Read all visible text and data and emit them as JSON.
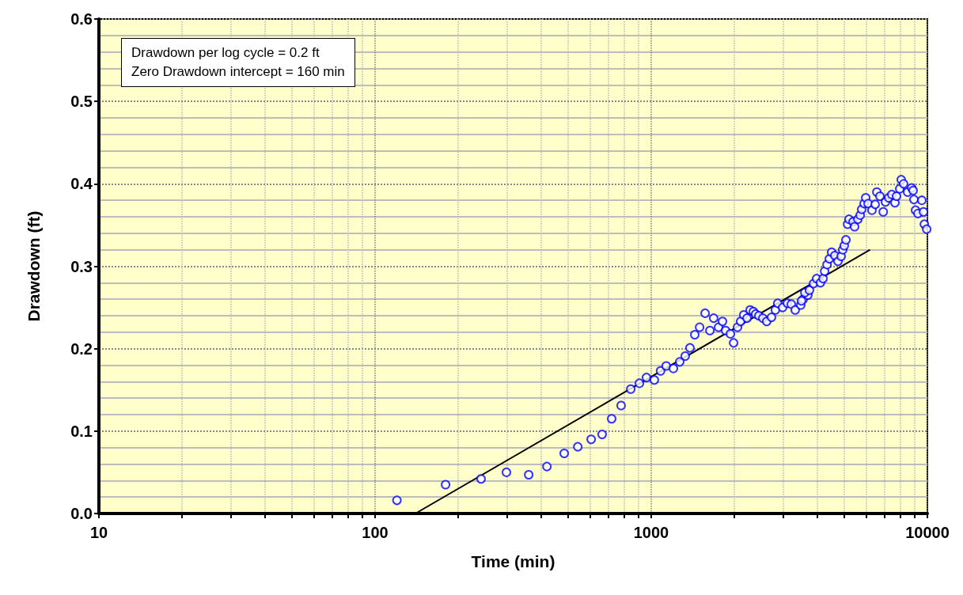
{
  "chart_data": {
    "type": "scatter",
    "xlabel": "Time (min)",
    "ylabel": "Drawdown (ft)",
    "annotations": [
      "Drawdown per log cycle = 0.2 ft",
      "Zero Drawdown intercept = 160 min"
    ],
    "log": "x",
    "grid": true,
    "xlim": [
      10,
      10000
    ],
    "xticks": [
      10,
      {
        "value": 20,
        "label": null
      },
      {
        "value": 30,
        "label": null
      },
      {
        "value": 40,
        "label": null
      },
      {
        "value": 50,
        "label": null
      },
      {
        "value": 60,
        "label": null
      },
      {
        "value": 70,
        "label": null
      },
      {
        "value": 80,
        "label": null
      },
      {
        "value": 90,
        "label": null
      },
      100,
      {
        "value": 200,
        "label": null
      },
      {
        "value": 300,
        "label": null
      },
      {
        "value": 400,
        "label": null
      },
      {
        "value": 500,
        "label": null
      },
      {
        "value": 600,
        "label": null
      },
      {
        "value": 700,
        "label": null
      },
      {
        "value": 800,
        "label": null
      },
      {
        "value": 900,
        "label": null
      },
      1000,
      {
        "value": 2000,
        "label": null
      },
      {
        "value": 3000,
        "label": null
      },
      {
        "value": 4000,
        "label": null
      },
      {
        "value": 5000,
        "label": null
      },
      {
        "value": 6000,
        "label": null
      },
      {
        "value": 7000,
        "label": null
      },
      {
        "value": 8000,
        "label": null
      },
      {
        "value": 9000,
        "label": null
      },
      10000
    ],
    "ylim": [
      0,
      0.6
    ],
    "yticks": [
      {
        "value": 0,
        "label": "0.0"
      },
      0.1,
      0.2,
      0.3,
      0.4,
      0.5,
      0.6
    ],
    "series": [
      {
        "type": "scatter",
        "color": "#0000ff",
        "marker": "circle",
        "x": [
          120,
          180,
          242,
          299,
          360,
          419,
          484,
          542,
          606,
          664,
          719,
          778,
          843,
          906,
          961,
          1026,
          1081,
          1133,
          1203,
          1268,
          1328,
          1381,
          1438,
          1497,
          1567,
          1631,
          1683,
          1753,
          1811,
          1859,
          1935,
          1987,
          2053,
          2107,
          2163,
          2222,
          2281,
          2343,
          2388,
          2453,
          2535,
          2619,
          2726,
          2816,
          2871,
          2990,
          3110,
          3215,
          3322,
          3480,
          3550,
          3690,
          3500,
          3600,
          3740,
          3870,
          3970,
          4100,
          4190,
          4245,
          4330,
          4415,
          4500,
          4620,
          4745,
          4870,
          4935,
          5000,
          5070,
          5140,
          5200,
          5380,
          5450,
          5600,
          5710,
          5780,
          5900,
          5980,
          6100,
          6300,
          6470,
          6560,
          6730,
          6920,
          7050,
          7240,
          7430,
          7630,
          7730,
          7940,
          8040,
          8200,
          8480,
          8770,
          8880,
          8940,
          9060,
          9240,
          9550,
          9680,
          9750,
          9940
        ],
        "values": [
          0.016,
          0.035,
          0.042,
          0.05,
          0.047,
          0.057,
          0.073,
          0.081,
          0.09,
          0.096,
          0.115,
          0.131,
          0.151,
          0.158,
          0.165,
          0.162,
          0.173,
          0.179,
          0.176,
          0.184,
          0.191,
          0.201,
          0.217,
          0.226,
          0.243,
          0.222,
          0.237,
          0.226,
          0.233,
          0.222,
          0.218,
          0.207,
          0.226,
          0.233,
          0.241,
          0.237,
          0.247,
          0.245,
          0.242,
          0.24,
          0.237,
          0.233,
          0.238,
          0.247,
          0.255,
          0.25,
          0.255,
          0.254,
          0.247,
          0.253,
          0.26,
          0.265,
          0.258,
          0.268,
          0.271,
          0.279,
          0.285,
          0.28,
          0.285,
          0.294,
          0.302,
          0.309,
          0.317,
          0.313,
          0.306,
          0.312,
          0.32,
          0.325,
          0.332,
          0.351,
          0.357,
          0.354,
          0.348,
          0.357,
          0.362,
          0.369,
          0.376,
          0.383,
          0.376,
          0.368,
          0.375,
          0.39,
          0.385,
          0.366,
          0.378,
          0.383,
          0.387,
          0.377,
          0.385,
          0.394,
          0.405,
          0.4,
          0.39,
          0.395,
          0.392,
          0.381,
          0.368,
          0.364,
          0.38,
          0.366,
          0.351,
          0.345
        ]
      },
      {
        "type": "line",
        "color": "#000000",
        "marker": "none",
        "line_style": "solid",
        "x": [
          140,
          6200
        ],
        "values": [
          0,
          0.32
        ]
      }
    ]
  }
}
